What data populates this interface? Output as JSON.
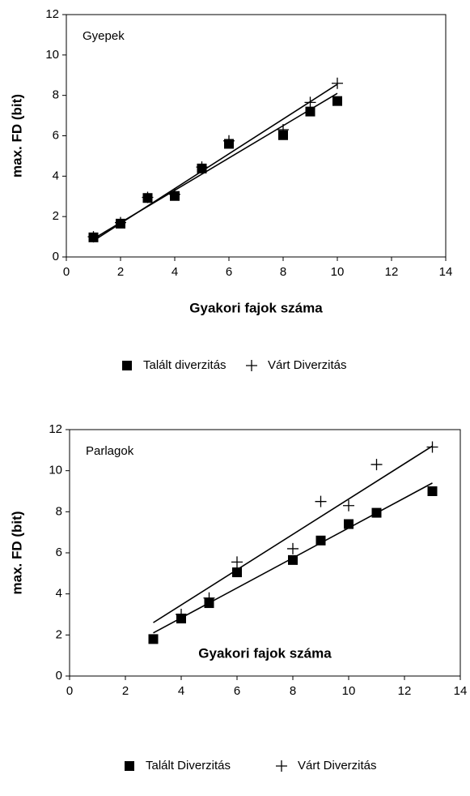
{
  "chart_data": [
    {
      "type": "scatter",
      "annotation": "Gyepek",
      "xlabel": "Gyakori fajok száma",
      "ylabel": "max. FD (bit)",
      "xlim": [
        0,
        14
      ],
      "xticks": [
        0,
        2,
        4,
        6,
        8,
        10,
        12,
        14
      ],
      "ylim": [
        0,
        12
      ],
      "yticks": [
        0,
        2,
        4,
        6,
        8,
        10,
        12
      ],
      "series": [
        {
          "name": "Talált diverzitás",
          "marker": "square",
          "color": "#000000",
          "x": [
            1,
            2,
            3,
            4,
            5,
            6,
            8,
            9,
            10
          ],
          "values": [
            0.97,
            1.65,
            2.92,
            3.02,
            4.38,
            5.6,
            6.03,
            7.2,
            7.72
          ],
          "trend_x": [
            1,
            10
          ],
          "trend_values": [
            0.9,
            8.1
          ]
        },
        {
          "name": "Várt Diverzitás",
          "marker": "plus",
          "color": "#000000",
          "x": [
            1,
            2,
            3,
            4,
            5,
            6,
            8,
            9,
            10
          ],
          "values": [
            1.0,
            1.7,
            2.95,
            3.1,
            4.45,
            5.75,
            6.3,
            7.65,
            8.6
          ],
          "trend_x": [
            1,
            10
          ],
          "trend_values": [
            0.8,
            8.55
          ]
        }
      ]
    },
    {
      "type": "scatter",
      "annotation": "Parlagok",
      "xlabel": "Gyakori fajok száma",
      "ylabel": "max. FD (bit)",
      "xlim": [
        0,
        14
      ],
      "xticks": [
        0,
        2,
        4,
        6,
        8,
        10,
        12,
        14
      ],
      "ylim": [
        0,
        12
      ],
      "yticks": [
        0,
        2,
        4,
        6,
        8,
        10,
        12
      ],
      "series": [
        {
          "name": "Talált Diverzitás",
          "marker": "square",
          "color": "#000000",
          "x": [
            3,
            4,
            5,
            6,
            8,
            9,
            10,
            11,
            13
          ],
          "values": [
            1.8,
            2.8,
            3.55,
            5.05,
            5.65,
            6.6,
            7.4,
            7.95,
            9.0
          ],
          "trend_x": [
            3,
            13
          ],
          "trend_values": [
            2.1,
            9.4
          ]
        },
        {
          "name": "Várt Diverzitás",
          "marker": "plus",
          "color": "#000000",
          "x": [
            4,
            5,
            6,
            8,
            9,
            10,
            11,
            13
          ],
          "values": [
            3.0,
            3.8,
            5.55,
            6.2,
            8.5,
            8.3,
            10.3,
            11.15
          ],
          "trend_x": [
            3,
            13
          ],
          "trend_values": [
            2.6,
            11.2
          ]
        }
      ]
    }
  ]
}
